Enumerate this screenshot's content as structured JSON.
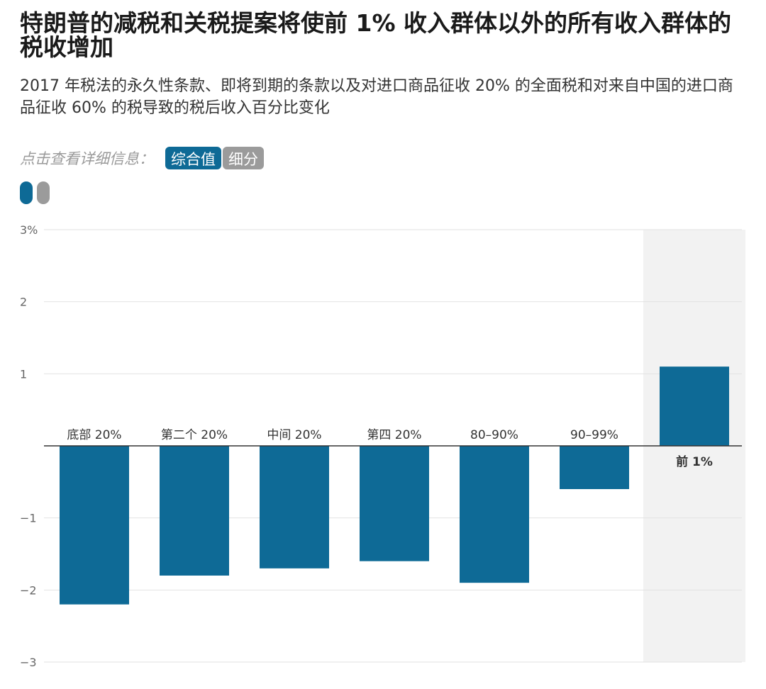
{
  "header": {
    "title": "特朗普的减税和关税提案将使前 1% 收入群体以外的所有收入群体的税收增加",
    "subtitle": "2017 年税法的永久性条款、即将到期的条款以及对进口商品征收 20% 的全面税和对来自中国的进口商品征收 60% 的税导致的税后收入百分比变化"
  },
  "controls": {
    "prompt": "点击查看详细信息：",
    "buttons": [
      {
        "label": "综合值",
        "active": true
      },
      {
        "label": "细分",
        "active": false
      }
    ]
  },
  "legend": {
    "colors": [
      "#0e6a96",
      "#9b9b9b"
    ]
  },
  "colors": {
    "bar": "#0e6a96",
    "highlight_bg": "#f2f2f2",
    "grid": "#e2e2e2",
    "zero_line": "#333333"
  },
  "chart_data": {
    "type": "bar",
    "categories": [
      "底部 20%",
      "第二个 20%",
      "中间 20%",
      "第四 20%",
      "80–90%",
      "90–99%",
      "前 1%"
    ],
    "values": [
      -2.2,
      -1.8,
      -1.7,
      -1.6,
      -1.9,
      -0.6,
      1.1
    ],
    "highlighted_category": "前 1%",
    "ylim": [
      -3,
      3
    ],
    "yticks": [
      -3,
      -2,
      -1,
      1,
      2,
      3
    ],
    "ytick_labels": [
      "−3",
      "−2",
      "−1",
      "1",
      "2",
      "3%"
    ],
    "grid": true,
    "xlabel": "",
    "ylabel": ""
  }
}
